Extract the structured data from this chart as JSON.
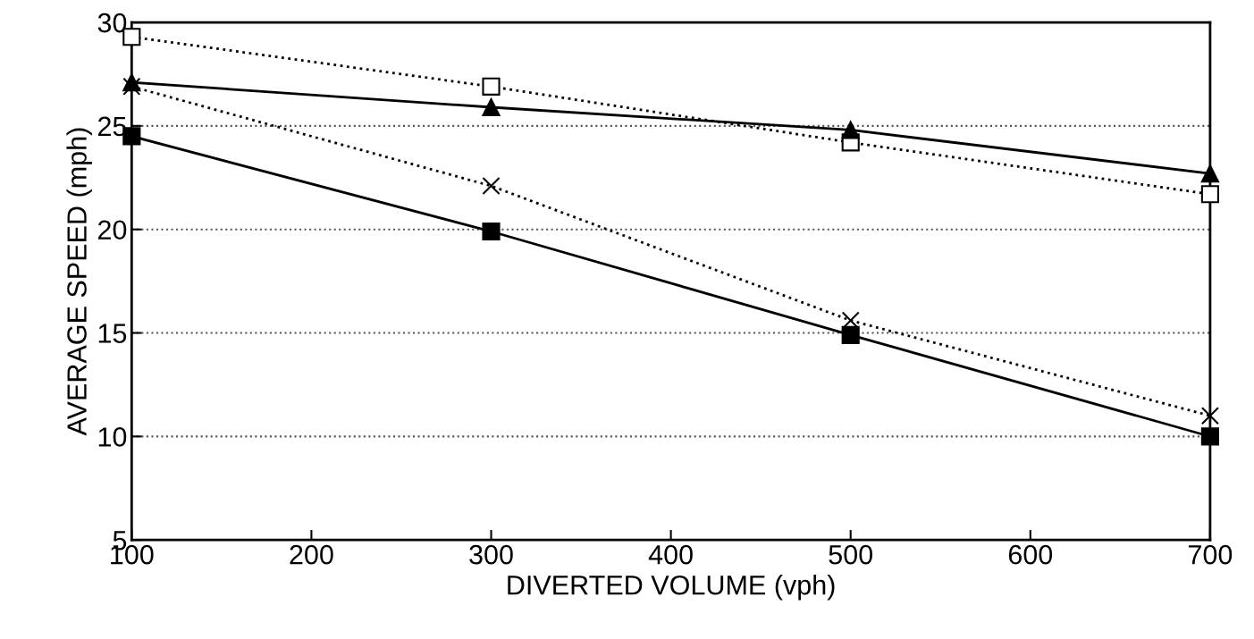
{
  "chart_data": {
    "type": "line",
    "xlabel": "DIVERTED VOLUME (vph)",
    "ylabel": "AVERAGE SPEED (mph)",
    "x": [
      100,
      300,
      500,
      700
    ],
    "series": [
      {
        "color": "#000000",
        "values": [
          29.3,
          26.9,
          24.2,
          21.7
        ],
        "marker": "square",
        "line_style": "dotted"
      },
      {
        "color": "#000000",
        "values": [
          27.1,
          25.9,
          24.8,
          22.7
        ],
        "marker": "triangle",
        "line_style": "solid"
      },
      {
        "color": "#000000",
        "values": [
          26.9,
          22.1,
          15.6,
          11.0
        ],
        "marker": "cross",
        "line_style": "dotted"
      },
      {
        "color": "#000000",
        "values": [
          24.5,
          19.9,
          14.9,
          10.0
        ],
        "marker": "square",
        "line_style": "solid"
      }
    ],
    "xlim": [
      100,
      700
    ],
    "xticks": [
      100,
      200,
      300,
      400,
      500,
      600,
      700
    ],
    "ylim": [
      5,
      30
    ],
    "yticks": [
      5,
      10,
      15,
      20,
      25,
      30
    ],
    "grid": "y"
  }
}
